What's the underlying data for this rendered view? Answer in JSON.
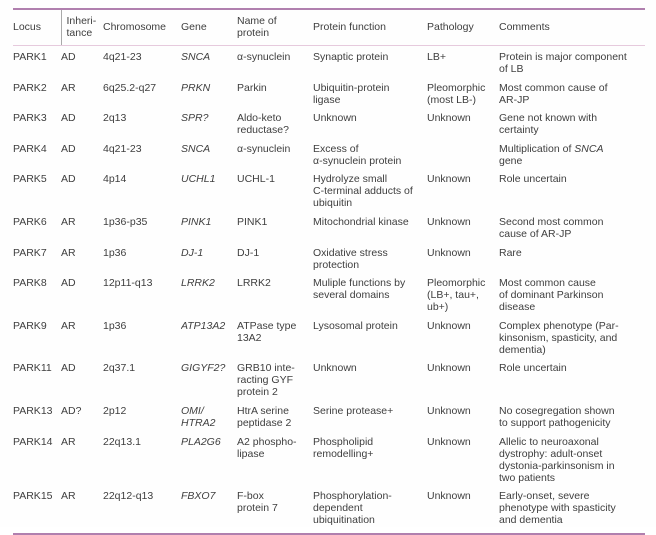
{
  "colors": {
    "rule": "#b07fae",
    "rule_light": "#e6cadd",
    "text": "#3e3e3e"
  },
  "table": {
    "columns": [
      {
        "key": "locus",
        "label": "Locus"
      },
      {
        "key": "inheritance",
        "label": "Inheri-\ntance"
      },
      {
        "key": "chromosome",
        "label": "Chromosome"
      },
      {
        "key": "gene",
        "label": "Gene"
      },
      {
        "key": "protein",
        "label": "Name of\nprotein"
      },
      {
        "key": "function",
        "label": "Protein function"
      },
      {
        "key": "pathology",
        "label": "Pathology"
      },
      {
        "key": "comments",
        "label": "Comments"
      }
    ],
    "rows": [
      {
        "locus": "PARK1",
        "inheritance": "AD",
        "chromosome": "4q21-23",
        "gene": "SNCA",
        "protein": "α-synuclein",
        "function": "Synaptic protein",
        "pathology": "LB+",
        "comments": "Protein is major component\nof LB"
      },
      {
        "locus": "PARK2",
        "inheritance": "AR",
        "chromosome": "6q25.2-q27",
        "gene": "PRKN",
        "protein": "Parkin",
        "function": "Ubiquitin-protein\nligase",
        "pathology": "Pleomorphic\n(most LB-)",
        "comments": "Most common cause of\nAR-JP"
      },
      {
        "locus": "PARK3",
        "inheritance": "AD",
        "chromosome": "2q13",
        "gene": "SPR?",
        "protein": "Aldo-keto\nreductase?",
        "function": "Unknown",
        "pathology": "Unknown",
        "comments": "Gene not known with\ncertainty"
      },
      {
        "locus": "PARK4",
        "inheritance": "AD",
        "chromosome": "4q21-23",
        "gene": "SNCA",
        "protein": "α-synuclein",
        "function": "Excess of\nα-synuclein protein",
        "pathology": "",
        "comments": [
          {
            "t": "Multiplication of "
          },
          {
            "t": "SNCA",
            "i": true
          },
          {
            "t": "\ngene"
          }
        ]
      },
      {
        "locus": "PARK5",
        "inheritance": "AD",
        "chromosome": "4p14",
        "gene": "UCHL1",
        "protein": "UCHL-1",
        "function": "Hydrolyze small\nC-terminal adducts of\nubiquitin",
        "pathology": "Unknown",
        "comments": "Role uncertain"
      },
      {
        "locus": "PARK6",
        "inheritance": "AR",
        "chromosome": "1p36-p35",
        "gene": "PINK1",
        "protein": "PINK1",
        "function": "Mitochondrial kinase",
        "pathology": "Unknown",
        "comments": "Second most common\ncause of AR-JP"
      },
      {
        "locus": "PARK7",
        "inheritance": "AR",
        "chromosome": "1p36",
        "gene": "DJ-1",
        "protein": "DJ-1",
        "function": "Oxidative stress\nprotection",
        "pathology": "Unknown",
        "comments": "Rare"
      },
      {
        "locus": "PARK8",
        "inheritance": "AD",
        "chromosome": "12p11-q13",
        "gene": "LRRK2",
        "protein": "LRRK2",
        "function": "Muliple functions by\nseveral domains",
        "pathology": "Pleomorphic\n(LB+, tau+,\nub+)",
        "comments": "Most common cause\nof dominant Parkinson\ndisease"
      },
      {
        "locus": "PARK9",
        "inheritance": "AR",
        "chromosome": "1p36",
        "gene": "ATP13A2",
        "protein": "ATPase type\n13A2",
        "function": "Lysosomal protein",
        "pathology": "Unknown",
        "comments": "Complex phenotype (Par-\nkinsonism, spasticity, and\ndementia)"
      },
      {
        "locus": "PARK11",
        "inheritance": "AD",
        "chromosome": "2q37.1",
        "gene": "GIGYF2?",
        "protein": "GRB10 inte-\nracting GYF\nprotein 2",
        "function": "Unknown",
        "pathology": "Unknown",
        "comments": "Role uncertain"
      },
      {
        "locus": "PARK13",
        "inheritance": "AD?",
        "chromosome": "2p12",
        "gene": "OMI/\nHTRA2",
        "protein": "HtrA serine\npeptidase 2",
        "function": "Serine protease+",
        "pathology": "Unknown",
        "comments": "No cosegregation shown\nto support pathogenicity"
      },
      {
        "locus": "PARK14",
        "inheritance": "AR",
        "chromosome": "22q13.1",
        "gene": "PLA2G6",
        "protein": "A2 phospho-\nlipase",
        "function": "Phospholipid\nremodelling+",
        "pathology": "Unknown",
        "comments": "Allelic to neuroaxonal\ndystrophy: adult-onset\ndystonia-parkinsonism in\ntwo patients"
      },
      {
        "locus": "PARK15",
        "inheritance": "AR",
        "chromosome": "22q12-q13",
        "gene": "FBXO7",
        "protein": "F-box\nprotein 7",
        "function": "Phosphorylation-\ndependent\nubiquitination",
        "pathology": "Unknown",
        "comments": "Early-onset, severe\nphenotype with spasticity\nand dementia"
      }
    ]
  }
}
